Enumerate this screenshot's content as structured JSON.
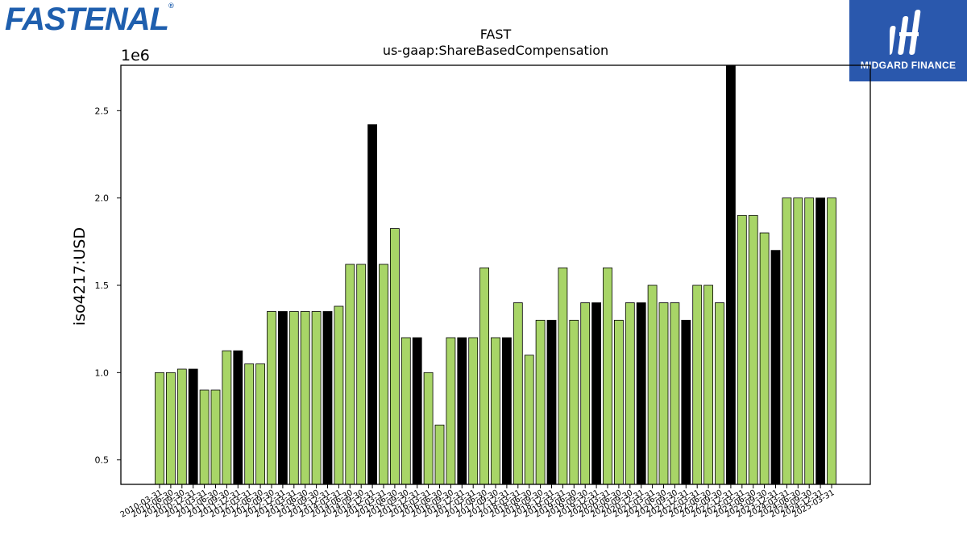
{
  "brand": {
    "left_logo": "FASTENAL",
    "right_logo": "MIDGARD FINANCE"
  },
  "colors": {
    "bar_fill": "#a8d567",
    "bar_highlight": "#000000",
    "bar_edge": "#000000",
    "logo_blue": "#1f5fae",
    "badge_blue": "#2a58ad"
  },
  "chart_data": {
    "type": "bar",
    "title": "FAST",
    "subtitle": "us-gaap:ShareBasedCompensation",
    "ylabel": "iso4217:USD",
    "xlabel": "",
    "scale_label": "1e6",
    "ylim": [
      360000,
      2760000
    ],
    "yticks": [
      {
        "value": 500000,
        "label": "0.5"
      },
      {
        "value": 1000000,
        "label": "1.0"
      },
      {
        "value": 1500000,
        "label": "1.5"
      },
      {
        "value": 2000000,
        "label": "2.0"
      },
      {
        "value": 2500000,
        "label": "2.5"
      }
    ],
    "grid": false,
    "categories": [
      "2010-03-31",
      "2010-06-30",
      "2010-09-30",
      "2010-12-31",
      "2011-03-31",
      "2011-06-30",
      "2011-09-30",
      "2011-12-31",
      "2012-03-31",
      "2012-06-30",
      "2012-09-30",
      "2012-12-31",
      "2013-03-31",
      "2013-06-30",
      "2013-09-30",
      "2013-12-31",
      "2014-03-31",
      "2014-06-30",
      "2014-09-30",
      "2014-12-31",
      "2015-03-31",
      "2015-06-30",
      "2015-09-30",
      "2015-12-31",
      "2016-03-31",
      "2016-06-30",
      "2016-09-30",
      "2016-12-31",
      "2017-03-31",
      "2017-06-30",
      "2017-09-30",
      "2017-12-31",
      "2018-03-31",
      "2018-06-30",
      "2018-09-30",
      "2018-12-31",
      "2019-03-31",
      "2019-06-30",
      "2019-09-30",
      "2019-12-31",
      "2020-03-31",
      "2020-06-30",
      "2020-09-30",
      "2020-12-31",
      "2021-03-31",
      "2021-06-30",
      "2021-09-30",
      "2021-12-31",
      "2022-03-31",
      "2022-06-30",
      "2022-09-30",
      "2022-12-31",
      "2023-03-31",
      "2023-06-30",
      "2023-09-30",
      "2023-12-31",
      "2024-03-31",
      "2024-06-30",
      "2024-09-30",
      "2024-12-31",
      "2025-03-31"
    ],
    "values": [
      1000000,
      1000000,
      1020000,
      1020000,
      900000,
      900000,
      1125000,
      1125000,
      1050000,
      1050000,
      1350000,
      1350000,
      1350000,
      1350000,
      1350000,
      1350000,
      1380000,
      1620000,
      1620000,
      2420000,
      1620000,
      1825000,
      1200000,
      1200000,
      1000000,
      700000,
      1200000,
      1200000,
      1200000,
      1600000,
      1200000,
      1200000,
      1400000,
      1100000,
      1300000,
      1300000,
      1600000,
      1300000,
      1400000,
      1400000,
      1600000,
      1300000,
      1400000,
      1400000,
      1500000,
      1400000,
      1400000,
      1300000,
      1500000,
      1500000,
      1400000,
      2760000,
      1900000,
      1900000,
      1800000,
      1700000,
      2000000,
      2000000,
      2000000,
      2000000,
      2000000
    ],
    "highlight_every": 4,
    "highlight_offset": 3,
    "legend": "none"
  }
}
